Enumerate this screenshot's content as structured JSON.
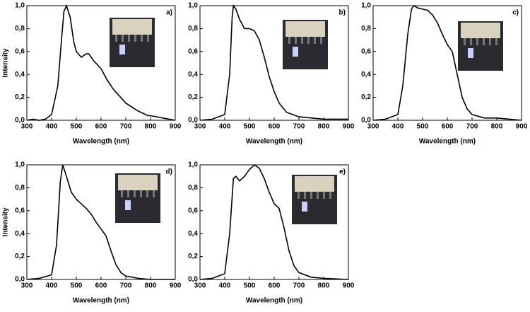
{
  "chart_data": [
    {
      "type": "line",
      "panel_label": "a)",
      "xlabel": "Wavelength (nm)",
      "ylabel": "Intensity",
      "color": "#000000",
      "x": [
        300,
        325,
        350,
        375,
        400,
        425,
        440,
        450,
        460,
        475,
        490,
        500,
        520,
        540,
        550,
        570,
        600,
        625,
        650,
        700,
        750,
        790,
        800,
        825,
        850,
        900
      ],
      "values": [
        0.0,
        0.01,
        0.0,
        0.01,
        0.05,
        0.3,
        0.7,
        0.95,
        1.0,
        0.9,
        0.68,
        0.6,
        0.55,
        0.58,
        0.58,
        0.52,
        0.45,
        0.35,
        0.27,
        0.15,
        0.08,
        0.04,
        0.04,
        0.03,
        0.02,
        0.0
      ],
      "xlim": [
        300,
        900
      ],
      "ylim": [
        0,
        1
      ],
      "xticks": [
        300,
        400,
        500,
        600,
        700,
        800,
        900
      ],
      "yticks": [
        {
          "value": 0,
          "label": "0,0"
        },
        {
          "value": 0.2,
          "label": "0,2"
        },
        {
          "value": 0.4,
          "label": "0,4"
        },
        {
          "value": 0.6,
          "label": "0,6"
        },
        {
          "value": 0.8,
          "label": "0,8"
        },
        {
          "value": 1,
          "label": "1,0"
        }
      ]
    },
    {
      "type": "line",
      "panel_label": "b)",
      "xlabel": "Wavelength (nm)",
      "color": "#000000",
      "x": [
        300,
        350,
        400,
        420,
        430,
        435,
        445,
        460,
        480,
        500,
        520,
        540,
        560,
        580,
        600,
        620,
        650,
        700,
        800,
        900
      ],
      "values": [
        0.0,
        0.01,
        0.05,
        0.4,
        0.9,
        1.0,
        0.97,
        0.88,
        0.8,
        0.8,
        0.78,
        0.7,
        0.55,
        0.38,
        0.25,
        0.15,
        0.07,
        0.03,
        0.01,
        0.01
      ],
      "xlim": [
        300,
        900
      ],
      "ylim": [
        0,
        1
      ],
      "xticks": [
        300,
        400,
        500,
        600,
        700,
        800,
        900
      ],
      "yticks": [
        {
          "value": 0,
          "label": "0,0"
        },
        {
          "value": 0.2,
          "label": "0,2"
        },
        {
          "value": 0.4,
          "label": "0,4"
        },
        {
          "value": 0.6,
          "label": "0,6"
        },
        {
          "value": 0.8,
          "label": "0,8"
        },
        {
          "value": 1,
          "label": "1,0"
        }
      ]
    },
    {
      "type": "line",
      "panel_label": "c)",
      "xlabel": "Wavelength (nm)",
      "color": "#000000",
      "x": [
        300,
        350,
        400,
        420,
        440,
        455,
        465,
        480,
        500,
        520,
        540,
        560,
        580,
        600,
        620,
        640,
        660,
        680,
        700,
        750,
        800,
        850,
        900
      ],
      "values": [
        0.0,
        0.01,
        0.05,
        0.3,
        0.75,
        0.97,
        1.0,
        0.98,
        0.97,
        0.96,
        0.92,
        0.85,
        0.75,
        0.66,
        0.6,
        0.4,
        0.2,
        0.1,
        0.05,
        0.02,
        0.02,
        0.01,
        0.0
      ],
      "xlim": [
        300,
        900
      ],
      "ylim": [
        0,
        1
      ],
      "xticks": [
        300,
        400,
        500,
        600,
        700,
        800,
        900
      ],
      "yticks": [
        {
          "value": 0,
          "label": "0,0"
        },
        {
          "value": 0.2,
          "label": "0,2"
        },
        {
          "value": 0.4,
          "label": "0,4"
        },
        {
          "value": 0.6,
          "label": "0,6"
        },
        {
          "value": 0.8,
          "label": "0,8"
        },
        {
          "value": 1,
          "label": "1,0"
        }
      ]
    },
    {
      "type": "line",
      "panel_label": "d)",
      "xlabel": "Wavelength (nm)",
      "ylabel": "Intensity",
      "color": "#000000",
      "x": [
        300,
        350,
        400,
        420,
        435,
        445,
        460,
        480,
        500,
        520,
        540,
        560,
        580,
        600,
        620,
        640,
        660,
        680,
        700,
        750,
        800,
        900
      ],
      "values": [
        0.0,
        0.01,
        0.04,
        0.3,
        0.85,
        1.0,
        0.9,
        0.76,
        0.7,
        0.66,
        0.62,
        0.57,
        0.5,
        0.44,
        0.38,
        0.25,
        0.13,
        0.06,
        0.03,
        0.01,
        0.0,
        0.0
      ],
      "xlim": [
        300,
        900
      ],
      "ylim": [
        0,
        1
      ],
      "xticks": [
        300,
        400,
        500,
        600,
        700,
        800,
        900
      ],
      "yticks": [
        {
          "value": 0,
          "label": "0,0"
        },
        {
          "value": 0.2,
          "label": "0,2"
        },
        {
          "value": 0.4,
          "label": "0,4"
        },
        {
          "value": 0.6,
          "label": "0,6"
        },
        {
          "value": 0.8,
          "label": "0,8"
        },
        {
          "value": 1,
          "label": "1,0"
        }
      ]
    },
    {
      "type": "line",
      "panel_label": "e)",
      "xlabel": "Wavelength (nm)",
      "color": "#000000",
      "x": [
        300,
        350,
        400,
        420,
        435,
        445,
        460,
        480,
        500,
        520,
        540,
        560,
        580,
        600,
        620,
        640,
        660,
        680,
        700,
        750,
        800,
        900
      ],
      "values": [
        0.0,
        0.01,
        0.05,
        0.4,
        0.88,
        0.9,
        0.86,
        0.9,
        0.96,
        1.0,
        0.97,
        0.88,
        0.76,
        0.66,
        0.62,
        0.45,
        0.25,
        0.12,
        0.06,
        0.02,
        0.01,
        0.0
      ],
      "xlim": [
        300,
        900
      ],
      "ylim": [
        0,
        1
      ],
      "xticks": [
        300,
        400,
        500,
        600,
        700,
        800,
        900
      ],
      "yticks": [
        {
          "value": 0,
          "label": "0,0"
        },
        {
          "value": 0.2,
          "label": "0,2"
        },
        {
          "value": 0.4,
          "label": "0,4"
        },
        {
          "value": 0.6,
          "label": "0,6"
        },
        {
          "value": 0.8,
          "label": "0,8"
        },
        {
          "value": 1,
          "label": "1,0"
        }
      ]
    }
  ]
}
